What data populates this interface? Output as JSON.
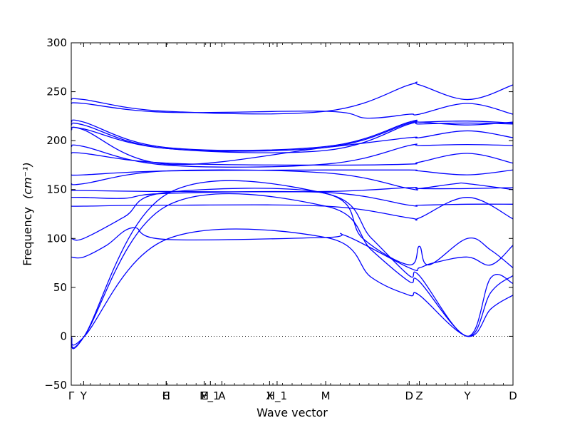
{
  "chart_data": {
    "type": "line",
    "xlabel": "Wave vector",
    "ylabel": "Frequency",
    "ylabel_unit": "(cm⁻¹)",
    "ylim": [
      -50,
      300
    ],
    "yticks": [
      -50,
      0,
      50,
      100,
      150,
      200,
      250,
      300
    ],
    "xlim": [
      0,
      1
    ],
    "high_symmetry_points": [
      {
        "label": "Γ",
        "x": 0.0
      },
      {
        "label": "Y",
        "x": 0.028
      },
      {
        "label": "C",
        "x": 0.215
      },
      {
        "label": "H",
        "x": 0.215
      },
      {
        "label": "M",
        "x": 0.301
      },
      {
        "label": "E_1",
        "x": 0.315
      },
      {
        "label": "A",
        "x": 0.341
      },
      {
        "label": "X",
        "x": 0.449
      },
      {
        "label": "H_1",
        "x": 0.466
      },
      {
        "label": "M",
        "x": 0.576
      },
      {
        "label": "D",
        "x": 0.765
      },
      {
        "label": "Z",
        "x": 0.788
      },
      {
        "label": "Y",
        "x": 0.897
      },
      {
        "label": "D",
        "x": 1.0
      }
    ],
    "zero_line": {
      "y": 0,
      "style": "dotted"
    },
    "series_color": "#0000ff",
    "series": [
      {
        "x": [
          0,
          0.028,
          0.215,
          0.576,
          0.68,
          0.765,
          0.788,
          0.897,
          0.95,
          1.0
        ],
        "values": [
          -1,
          -1,
          99,
          101,
          60,
          42,
          42,
          0,
          28,
          42
        ]
      },
      {
        "x": [
          0,
          0.028,
          0.215,
          0.576,
          0.68,
          0.765,
          0.788,
          0.897,
          0.95,
          1.0
        ],
        "values": [
          -1,
          -1,
          133,
          133,
          88,
          56,
          56,
          0,
          45,
          62
        ]
      },
      {
        "x": [
          0,
          0.028,
          0.215,
          0.576,
          0.68,
          0.765,
          0.788,
          0.897,
          0.95,
          1.0
        ],
        "values": [
          -1,
          -1,
          145,
          146,
          100,
          62,
          62,
          0,
          60,
          54
        ]
      },
      {
        "x": [
          0,
          0.028,
          0.08,
          0.14,
          0.215,
          0.576,
          0.62,
          0.765,
          0.788,
          0.82,
          0.897,
          0.95,
          1.0
        ],
        "values": [
          81,
          81,
          93,
          111,
          99,
          101,
          103,
          70,
          70,
          75,
          81,
          73,
          93
        ]
      },
      {
        "x": [
          0,
          0.028,
          0.12,
          0.215,
          0.576,
          0.66,
          0.765,
          0.788,
          0.81,
          0.897,
          0.95,
          1.0
        ],
        "values": [
          100,
          100,
          122,
          147,
          146,
          100,
          73,
          92,
          73,
          100,
          88,
          70
        ]
      },
      {
        "x": [
          0,
          0.028,
          0.215,
          0.576,
          0.765,
          0.788,
          0.897,
          1.0
        ],
        "values": [
          133,
          133,
          134,
          133,
          121,
          121,
          142,
          120
        ]
      },
      {
        "x": [
          0,
          0.028,
          0.12,
          0.215,
          0.576,
          0.765,
          0.788,
          0.897,
          1.0
        ],
        "values": [
          142,
          142,
          141,
          146,
          147,
          134,
          134,
          135,
          135
        ]
      },
      {
        "x": [
          0,
          0.028,
          0.215,
          0.576,
          0.765,
          0.788,
          0.897,
          1.0
        ],
        "values": [
          149,
          149,
          148,
          148,
          152,
          151,
          151,
          152
        ]
      },
      {
        "x": [
          0,
          0.028,
          0.215,
          0.576,
          0.765,
          0.788,
          0.87,
          0.897,
          1.0
        ],
        "values": [
          156,
          156,
          169,
          167,
          151,
          151,
          156,
          156,
          150
        ]
      },
      {
        "x": [
          0,
          0.028,
          0.215,
          0.576,
          0.765,
          0.788,
          0.897,
          1.0
        ],
        "values": [
          165,
          165,
          169,
          170,
          170,
          169,
          165,
          170
        ]
      },
      {
        "x": [
          0,
          0.028,
          0.215,
          0.576,
          0.765,
          0.788,
          0.897,
          1.0
        ],
        "values": [
          187,
          187,
          177,
          175,
          176,
          178,
          187,
          177
        ]
      },
      {
        "x": [
          0,
          0.028,
          0.215,
          0.576,
          0.765,
          0.788,
          0.897,
          1.0
        ],
        "values": [
          194,
          194,
          175,
          176,
          195,
          195,
          196,
          195
        ]
      },
      {
        "x": [
          0,
          0.028,
          0.215,
          0.576,
          0.765,
          0.788,
          0.897,
          1.0
        ],
        "values": [
          211,
          211,
          176,
          193,
          203,
          203,
          210,
          203
        ]
      },
      {
        "x": [
          0,
          0.028,
          0.215,
          0.576,
          0.765,
          0.788,
          0.897,
          1.0
        ],
        "values": [
          212,
          212,
          192,
          190,
          217,
          217,
          218,
          217
        ]
      },
      {
        "x": [
          0,
          0.028,
          0.215,
          0.576,
          0.765,
          0.788,
          0.897,
          1.0
        ],
        "values": [
          216,
          216,
          192,
          193,
          218,
          219,
          216,
          219
        ]
      },
      {
        "x": [
          0,
          0.028,
          0.215,
          0.576,
          0.765,
          0.788,
          0.897,
          1.0
        ],
        "values": [
          219,
          219,
          193,
          194,
          219,
          219,
          220,
          218
        ]
      },
      {
        "x": [
          0,
          0.028,
          0.215,
          0.576,
          0.67,
          0.765,
          0.788,
          0.897,
          1.0
        ],
        "values": [
          238,
          238,
          229,
          230,
          223,
          227,
          227,
          238,
          227
        ]
      },
      {
        "x": [
          0,
          0.028,
          0.215,
          0.576,
          0.765,
          0.788,
          0.897,
          1.0
        ],
        "values": [
          242,
          242,
          230,
          230,
          257,
          257,
          242,
          257
        ]
      }
    ]
  }
}
